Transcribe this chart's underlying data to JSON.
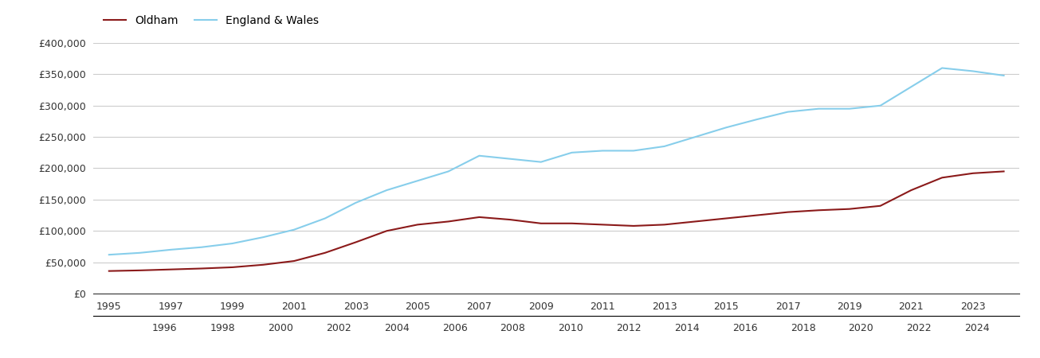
{
  "years": [
    1995,
    1996,
    1997,
    1998,
    1999,
    2000,
    2001,
    2002,
    2003,
    2004,
    2005,
    2006,
    2007,
    2008,
    2009,
    2010,
    2011,
    2012,
    2013,
    2014,
    2015,
    2016,
    2017,
    2018,
    2019,
    2020,
    2021,
    2022,
    2023,
    2024
  ],
  "oldham": [
    36000,
    37000,
    38500,
    40000,
    42000,
    46000,
    52000,
    65000,
    82000,
    100000,
    110000,
    115000,
    122000,
    118000,
    112000,
    112000,
    110000,
    108000,
    110000,
    115000,
    120000,
    125000,
    130000,
    133000,
    135000,
    140000,
    165000,
    185000,
    192000,
    195000
  ],
  "england_wales": [
    62000,
    65000,
    70000,
    74000,
    80000,
    90000,
    102000,
    120000,
    145000,
    165000,
    180000,
    195000,
    220000,
    215000,
    210000,
    225000,
    228000,
    228000,
    235000,
    250000,
    265000,
    278000,
    290000,
    295000,
    295000,
    300000,
    330000,
    360000,
    355000,
    348000
  ],
  "oldham_color": "#8B1A1A",
  "ew_color": "#87CEEB",
  "legend_oldham": "Oldham",
  "legend_ew": "England & Wales",
  "ylim": [
    0,
    400000
  ],
  "yticks": [
    0,
    50000,
    100000,
    150000,
    200000,
    250000,
    300000,
    350000,
    400000
  ],
  "background_color": "#ffffff",
  "grid_color": "#cccccc",
  "line_width": 1.5
}
